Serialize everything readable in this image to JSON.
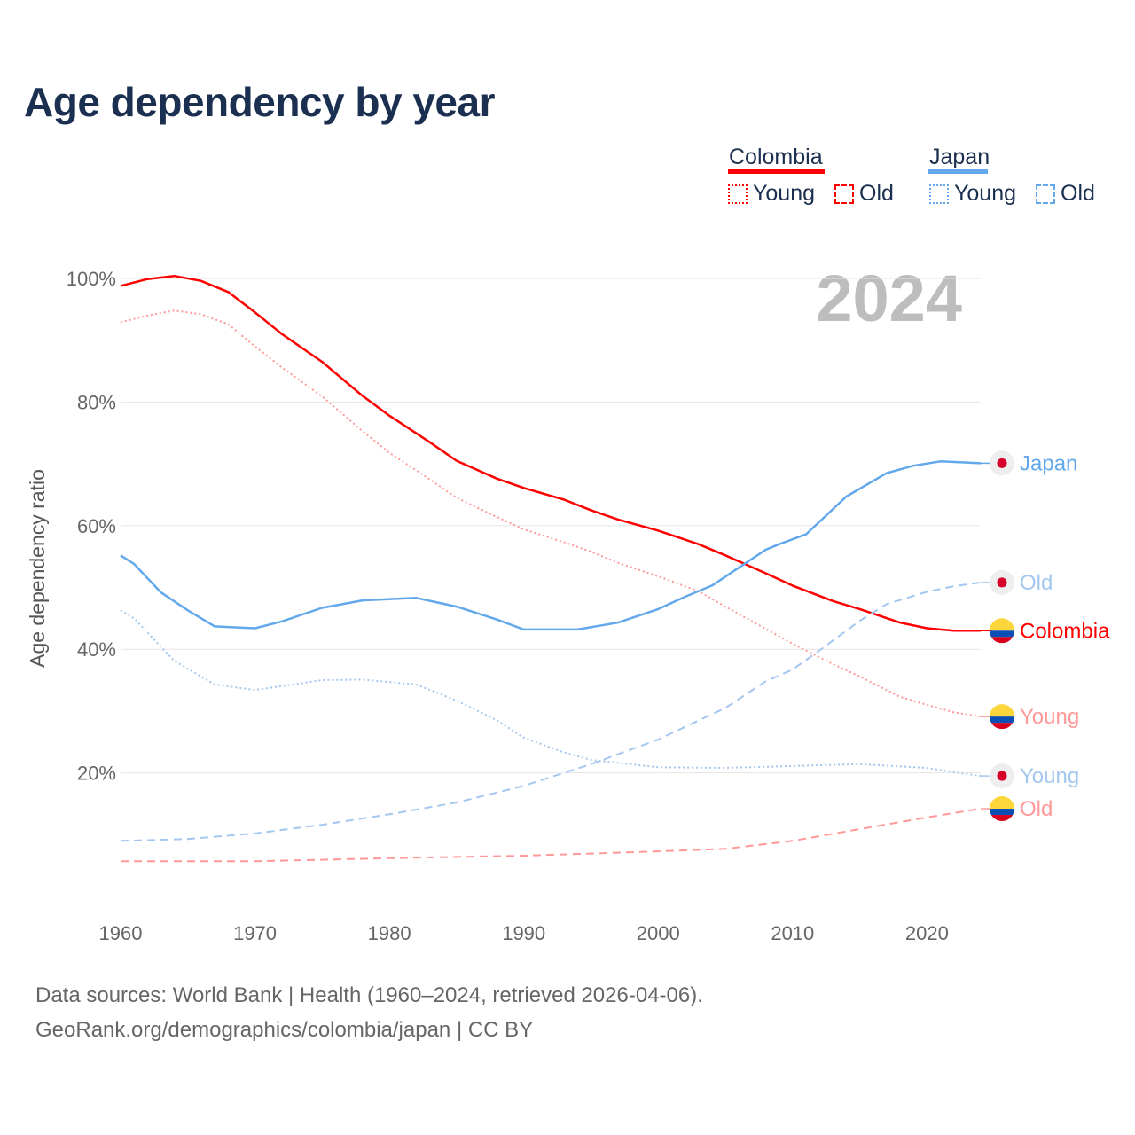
{
  "title": "Age dependency by year",
  "legend": {
    "groups": [
      {
        "name": "Colombia",
        "color": "#ff0000",
        "items": [
          {
            "label": "Young",
            "style": "dotted"
          },
          {
            "label": "Old",
            "style": "dashed"
          }
        ]
      },
      {
        "name": "Japan",
        "color": "#62a8ea",
        "items": [
          {
            "label": "Young",
            "style": "dotted"
          },
          {
            "label": "Old",
            "style": "dashed"
          }
        ]
      }
    ]
  },
  "footer": {
    "line1": "Data sources: World Bank | Health (1960–2024, retrieved 2026-04-06).",
    "line2": "GeoRank.org/demographics/colombia/japan | CC BY"
  },
  "chart_data": {
    "type": "line",
    "title": "Age dependency by year",
    "year_label": "2024",
    "xlabel": "",
    "ylabel": "Age dependency ratio",
    "xlim": [
      1960,
      2024
    ],
    "ylim": [
      0,
      100
    ],
    "xticks": [
      "1960",
      "1970",
      "1980",
      "1990",
      "2000",
      "2010",
      "2020"
    ],
    "yticks": [
      {
        "v": 20,
        "label": "20%"
      },
      {
        "v": 40,
        "label": "40%"
      },
      {
        "v": 60,
        "label": "60%"
      },
      {
        "v": 80,
        "label": "80%"
      },
      {
        "v": 100,
        "label": "100%"
      }
    ],
    "grid": true,
    "series": [
      {
        "name": "Colombia",
        "end_label": "Colombia",
        "country": "colombia",
        "color": "#ff0000",
        "dash": "solid",
        "points": [
          [
            1960,
            98.8
          ],
          [
            1962,
            99.9
          ],
          [
            1964,
            100.4
          ],
          [
            1966,
            99.6
          ],
          [
            1968,
            97.8
          ],
          [
            1970,
            94.5
          ],
          [
            1972,
            91.0
          ],
          [
            1975,
            86.5
          ],
          [
            1978,
            81.0
          ],
          [
            1980,
            77.8
          ],
          [
            1983,
            73.5
          ],
          [
            1985,
            70.5
          ],
          [
            1988,
            67.6
          ],
          [
            1990,
            66.1
          ],
          [
            1993,
            64.2
          ],
          [
            1995,
            62.5
          ],
          [
            1997,
            61.0
          ],
          [
            2000,
            59.2
          ],
          [
            2003,
            57.0
          ],
          [
            2005,
            55.2
          ],
          [
            2008,
            52.3
          ],
          [
            2010,
            50.3
          ],
          [
            2013,
            47.8
          ],
          [
            2015,
            46.5
          ],
          [
            2018,
            44.3
          ],
          [
            2020,
            43.4
          ],
          [
            2022,
            43.0
          ],
          [
            2024,
            43.0
          ]
        ]
      },
      {
        "name": "Colombia Young",
        "end_label": "Young",
        "country": "colombia",
        "color": "#ff9999",
        "dash": "dotted",
        "points": [
          [
            1960,
            92.9
          ],
          [
            1962,
            94.0
          ],
          [
            1964,
            94.8
          ],
          [
            1966,
            94.2
          ],
          [
            1968,
            92.6
          ],
          [
            1970,
            89.0
          ],
          [
            1972,
            85.6
          ],
          [
            1975,
            80.9
          ],
          [
            1978,
            75.3
          ],
          [
            1980,
            71.8
          ],
          [
            1983,
            67.5
          ],
          [
            1985,
            64.5
          ],
          [
            1988,
            61.4
          ],
          [
            1990,
            59.4
          ],
          [
            1993,
            57.3
          ],
          [
            1995,
            55.8
          ],
          [
            1997,
            54.0
          ],
          [
            2000,
            51.8
          ],
          [
            2003,
            49.4
          ],
          [
            2005,
            46.9
          ],
          [
            2008,
            43.3
          ],
          [
            2010,
            40.9
          ],
          [
            2013,
            37.6
          ],
          [
            2015,
            35.6
          ],
          [
            2018,
            32.3
          ],
          [
            2020,
            31.0
          ],
          [
            2022,
            29.8
          ],
          [
            2024,
            29.1
          ]
        ]
      },
      {
        "name": "Colombia Old",
        "end_label": "Old",
        "country": "colombia",
        "color": "#ff9999",
        "dash": "dashed",
        "points": [
          [
            1960,
            5.7
          ],
          [
            1970,
            5.7
          ],
          [
            1980,
            6.2
          ],
          [
            1990,
            6.6
          ],
          [
            2000,
            7.3
          ],
          [
            2005,
            7.7
          ],
          [
            2010,
            9.0
          ],
          [
            2015,
            10.9
          ],
          [
            2020,
            12.8
          ],
          [
            2024,
            14.2
          ]
        ]
      },
      {
        "name": "Japan",
        "end_label": "Japan",
        "country": "japan",
        "color": "#62a8ea",
        "dash": "solid",
        "points": [
          [
            1960,
            55.2
          ],
          [
            1961,
            53.8
          ],
          [
            1963,
            49.2
          ],
          [
            1965,
            46.3
          ],
          [
            1967,
            43.7
          ],
          [
            1970,
            43.4
          ],
          [
            1972,
            44.5
          ],
          [
            1975,
            46.7
          ],
          [
            1978,
            47.9
          ],
          [
            1982,
            48.3
          ],
          [
            1985,
            46.9
          ],
          [
            1988,
            44.8
          ],
          [
            1990,
            43.2
          ],
          [
            1994,
            43.2
          ],
          [
            1997,
            44.3
          ],
          [
            2000,
            46.5
          ],
          [
            2002,
            48.5
          ],
          [
            2004,
            50.3
          ],
          [
            2006,
            53.2
          ],
          [
            2008,
            56.1
          ],
          [
            2009,
            57.0
          ],
          [
            2011,
            58.6
          ],
          [
            2014,
            64.7
          ],
          [
            2017,
            68.5
          ],
          [
            2019,
            69.7
          ],
          [
            2021,
            70.4
          ],
          [
            2024,
            70.1
          ]
        ]
      },
      {
        "name": "Japan Old",
        "end_label": "Old",
        "country": "japan",
        "color": "#a3c7ef",
        "dash": "dashed",
        "points": [
          [
            1960,
            9.0
          ],
          [
            1965,
            9.3
          ],
          [
            1970,
            10.2
          ],
          [
            1975,
            11.6
          ],
          [
            1980,
            13.3
          ],
          [
            1985,
            15.2
          ],
          [
            1990,
            17.9
          ],
          [
            1995,
            21.4
          ],
          [
            2000,
            25.4
          ],
          [
            2005,
            30.5
          ],
          [
            2008,
            34.8
          ],
          [
            2010,
            36.7
          ],
          [
            2012,
            39.8
          ],
          [
            2015,
            44.6
          ],
          [
            2017,
            47.3
          ],
          [
            2020,
            49.3
          ],
          [
            2022,
            50.2
          ],
          [
            2024,
            50.8
          ]
        ]
      },
      {
        "name": "Japan Young",
        "end_label": "Young",
        "country": "japan",
        "color": "#a3c7ef",
        "dash": "dotted",
        "points": [
          [
            1960,
            46.3
          ],
          [
            1961,
            45.0
          ],
          [
            1964,
            38.1
          ],
          [
            1967,
            34.3
          ],
          [
            1970,
            33.4
          ],
          [
            1975,
            35.0
          ],
          [
            1978,
            35.1
          ],
          [
            1982,
            34.3
          ],
          [
            1985,
            31.7
          ],
          [
            1988,
            28.5
          ],
          [
            1990,
            25.7
          ],
          [
            1993,
            23.3
          ],
          [
            1995,
            22.1
          ],
          [
            2000,
            20.9
          ],
          [
            2005,
            20.8
          ],
          [
            2010,
            21.1
          ],
          [
            2015,
            21.4
          ],
          [
            2020,
            20.8
          ],
          [
            2022,
            20.1
          ],
          [
            2024,
            19.5
          ]
        ]
      }
    ]
  }
}
